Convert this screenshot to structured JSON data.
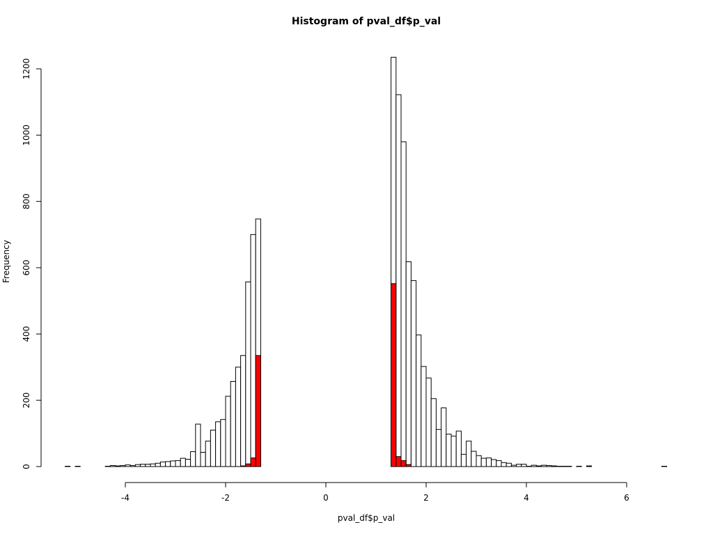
{
  "chart_data": {
    "type": "bar",
    "title": "Histogram of pval_df$p_val",
    "xlabel": "pval_df$p_val",
    "ylabel": "Frequency",
    "xlim": [
      -5.2,
      6.8
    ],
    "ylim": [
      0,
      1200
    ],
    "x_ticks": [
      -4,
      -2,
      0,
      2,
      4,
      6
    ],
    "y_ticks": [
      0,
      200,
      400,
      600,
      800,
      1000,
      1200
    ],
    "bin_width": 0.1,
    "bin_start": -5.2,
    "outline_color": "#000000",
    "highlight_color": "#ff0000",
    "series": [
      {
        "values": [
          1,
          0,
          1,
          0,
          0,
          0,
          0,
          0,
          1,
          3,
          2,
          3,
          5,
          3,
          6,
          7,
          7,
          8,
          10,
          14,
          15,
          17,
          18,
          25,
          22,
          45,
          128,
          43,
          77,
          110,
          135,
          142,
          212,
          257,
          300,
          335,
          557,
          700,
          747,
          0,
          0,
          0,
          0,
          0,
          0,
          0,
          0,
          0,
          0,
          0,
          0,
          0,
          0,
          0,
          0,
          0,
          0,
          0,
          0,
          0,
          0,
          0,
          0,
          0,
          0,
          1235,
          1122,
          980,
          618,
          561,
          397,
          302,
          267,
          205,
          112,
          177,
          98,
          92,
          107,
          37,
          77,
          46,
          33,
          25,
          26,
          21,
          18,
          12,
          10,
          4,
          7,
          7,
          1,
          4,
          2,
          4,
          3,
          2,
          1,
          1,
          1,
          0,
          1,
          0,
          2,
          0,
          0,
          0,
          0,
          0,
          0,
          0,
          0,
          0,
          0,
          0,
          0,
          0,
          0,
          1
        ]
      },
      {
        "values": [
          0,
          0,
          0,
          0,
          0,
          0,
          0,
          0,
          0,
          0,
          0,
          0,
          0,
          0,
          0,
          0,
          0,
          0,
          0,
          0,
          0,
          0,
          0,
          0,
          0,
          0,
          0,
          0,
          0,
          0,
          0,
          0,
          0,
          0,
          0,
          2,
          8,
          26,
          335,
          0,
          0,
          0,
          0,
          0,
          0,
          0,
          0,
          0,
          0,
          0,
          0,
          0,
          0,
          0,
          0,
          0,
          0,
          0,
          0,
          0,
          0,
          0,
          0,
          0,
          0,
          552,
          30,
          18,
          6,
          0,
          0,
          0,
          0,
          0,
          0,
          0,
          0,
          0,
          0,
          0,
          0,
          0,
          0,
          0,
          0,
          0,
          0,
          0,
          0,
          0,
          0,
          0,
          0,
          0,
          0,
          0,
          0,
          0,
          0,
          0,
          0,
          0,
          0,
          0,
          0,
          0,
          0,
          0,
          0,
          0,
          0,
          0,
          0,
          0,
          0,
          0,
          0,
          0,
          0,
          0
        ]
      }
    ]
  }
}
